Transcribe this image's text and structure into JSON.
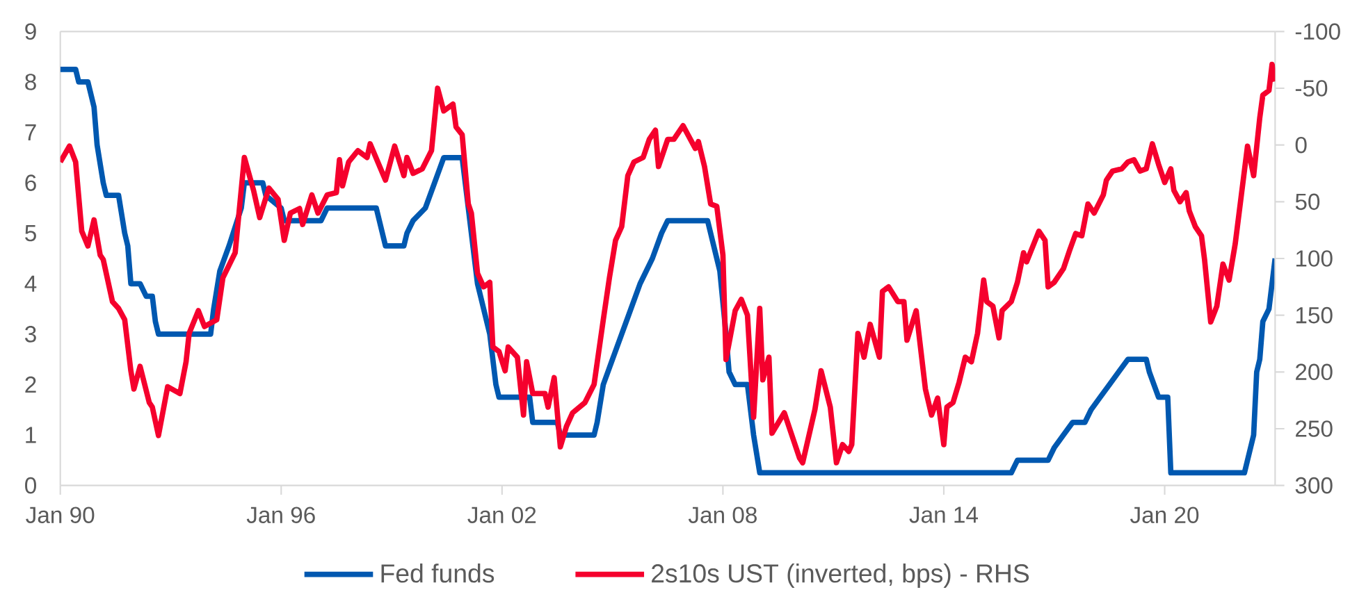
{
  "chart_data": {
    "type": "line",
    "xlim": [
      "1990-01",
      "2023-01"
    ],
    "xticks": [
      {
        "value": "1990-01",
        "label": "Jan 90"
      },
      {
        "value": "1996-01",
        "label": "Jan 96"
      },
      {
        "value": "2002-01",
        "label": "Jan 02"
      },
      {
        "value": "2008-01",
        "label": "Jan 08"
      },
      {
        "value": "2014-01",
        "label": "Jan 14"
      },
      {
        "value": "2020-01",
        "label": "Jan 20"
      }
    ],
    "ylim": [
      0,
      9
    ],
    "yticks": [
      0,
      1,
      2,
      3,
      4,
      5,
      6,
      7,
      8,
      9
    ],
    "y2lim": [
      300,
      -100
    ],
    "y2ticks": [
      -100,
      -50,
      0,
      50,
      100,
      150,
      200,
      250,
      300
    ],
    "legend": "bottom",
    "grid": false,
    "marker": "none",
    "line_style": "solid",
    "series": [
      {
        "name": "Fed funds",
        "color": "#0058b0",
        "axis": "y",
        "x": [
          "1990-01",
          "1990-06",
          "1990-07",
          "1990-10",
          "1990-12",
          "1991-01",
          "1991-03",
          "1991-04",
          "1991-08",
          "1991-10",
          "1991-11",
          "1991-12",
          "1992-03",
          "1992-05",
          "1992-07",
          "1992-08",
          "1992-09",
          "1994-02",
          "1994-03",
          "1994-05",
          "1994-08",
          "1994-12",
          "1995-01",
          "1995-07",
          "1995-08",
          "1996-01",
          "1996-02",
          "1997-02",
          "1997-04",
          "1998-08",
          "1998-11",
          "1999-05",
          "1999-06",
          "1999-08",
          "1999-12",
          "2000-03",
          "2000-06",
          "2000-12",
          "2001-02",
          "2001-05",
          "2001-06",
          "2001-09",
          "2001-11",
          "2001-12",
          "2002-10",
          "2002-11",
          "2003-07",
          "2003-08",
          "2004-07",
          "2004-08",
          "2004-10",
          "2005-01",
          "2005-04",
          "2005-07",
          "2005-10",
          "2006-02",
          "2006-05",
          "2006-07",
          "2007-08",
          "2007-10",
          "2007-12",
          "2008-02",
          "2008-03",
          "2008-05",
          "2008-09",
          "2008-11",
          "2009-01",
          "2015-11",
          "2016-01",
          "2016-11",
          "2017-01",
          "2017-04",
          "2017-07",
          "2017-11",
          "2018-01",
          "2018-04",
          "2018-07",
          "2018-10",
          "2019-01",
          "2019-07",
          "2019-08",
          "2019-11",
          "2020-02",
          "2020-03",
          "2022-03",
          "2022-04",
          "2022-06",
          "2022-07",
          "2022-08",
          "2022-09",
          "2022-11",
          "2023-01"
        ],
        "values": [
          8.25,
          8.25,
          8.0,
          8.0,
          7.5,
          6.75,
          6.0,
          5.75,
          5.75,
          5.0,
          4.75,
          4.0,
          4.0,
          3.75,
          3.75,
          3.25,
          3.0,
          3.0,
          3.5,
          4.25,
          4.75,
          5.5,
          6.0,
          6.0,
          5.75,
          5.5,
          5.25,
          5.25,
          5.5,
          5.5,
          4.75,
          4.75,
          5.0,
          5.25,
          5.5,
          6.0,
          6.5,
          6.5,
          5.5,
          4.0,
          3.75,
          3.0,
          2.0,
          1.75,
          1.75,
          1.25,
          1.25,
          1.0,
          1.0,
          1.25,
          2.0,
          2.5,
          3.0,
          3.5,
          4.0,
          4.5,
          5.0,
          5.25,
          5.25,
          4.75,
          4.25,
          3.0,
          2.25,
          2.0,
          2.0,
          1.0,
          0.25,
          0.25,
          0.5,
          0.5,
          0.75,
          1.0,
          1.25,
          1.25,
          1.5,
          1.75,
          2.0,
          2.25,
          2.5,
          2.5,
          2.25,
          1.75,
          1.75,
          0.25,
          0.25,
          0.5,
          1.0,
          2.25,
          2.5,
          3.25,
          3.5,
          4.5
        ]
      },
      {
        "name": "2s10s UST (inverted, bps) - RHS",
        "color": "#f5002d",
        "axis": "y2",
        "x": [
          "1990-01",
          "1990-04",
          "1990-06",
          "1990-08",
          "1990-10",
          "1990-12",
          "1991-02",
          "1991-03",
          "1991-06",
          "1991-08",
          "1991-10",
          "1991-12",
          "1992-01",
          "1992-03",
          "1992-06",
          "1992-07",
          "1992-09",
          "1992-12",
          "1993-04",
          "1993-06",
          "1993-07",
          "1993-10",
          "1993-12",
          "1994-04",
          "1994-06",
          "1994-10",
          "1995-01",
          "1995-04",
          "1995-06",
          "1995-09",
          "1995-12",
          "1996-02",
          "1996-04",
          "1996-07",
          "1996-08",
          "1996-11",
          "1997-01",
          "1997-04",
          "1997-07",
          "1997-08",
          "1997-09",
          "1997-11",
          "1998-02",
          "1998-05",
          "1998-06",
          "1998-11",
          "1999-02",
          "1999-05",
          "1999-06",
          "1999-08",
          "1999-11",
          "2000-02",
          "2000-04",
          "2000-06",
          "2000-09",
          "2000-10",
          "2000-12",
          "2001-02",
          "2001-03",
          "2001-05",
          "2001-07",
          "2001-09",
          "2001-10",
          "2001-12",
          "2002-02",
          "2002-03",
          "2002-06",
          "2002-08",
          "2002-09",
          "2002-11",
          "2003-03",
          "2003-04",
          "2003-06",
          "2003-08",
          "2003-10",
          "2003-12",
          "2004-04",
          "2004-07",
          "2004-10",
          "2004-12",
          "2005-02",
          "2005-04",
          "2005-06",
          "2005-08",
          "2005-11",
          "2006-01",
          "2006-03",
          "2006-04",
          "2006-07",
          "2006-09",
          "2006-12",
          "2007-04",
          "2007-05",
          "2007-07",
          "2007-09",
          "2007-11",
          "2008-01",
          "2008-02",
          "2008-05",
          "2008-07",
          "2008-09",
          "2008-11",
          "2009-01",
          "2009-02",
          "2009-04",
          "2009-05",
          "2009-09",
          "2009-11",
          "2010-02",
          "2010-03",
          "2010-07",
          "2010-09",
          "2010-12",
          "2011-02",
          "2011-04",
          "2011-06",
          "2011-07",
          "2011-09",
          "2011-11",
          "2012-01",
          "2012-04",
          "2012-05",
          "2012-07",
          "2012-10",
          "2012-12",
          "2013-01",
          "2013-04",
          "2013-07",
          "2013-09",
          "2013-11",
          "2014-01",
          "2014-02",
          "2014-04",
          "2014-06",
          "2014-08",
          "2014-10",
          "2014-12",
          "2015-02",
          "2015-03",
          "2015-05",
          "2015-07",
          "2015-08",
          "2015-11",
          "2016-01",
          "2016-03",
          "2016-04",
          "2016-08",
          "2016-10",
          "2016-11",
          "2017-01",
          "2017-04",
          "2017-06",
          "2017-08",
          "2017-10",
          "2017-12",
          "2018-02",
          "2018-05",
          "2018-06",
          "2018-08",
          "2018-11",
          "2019-01",
          "2019-03",
          "2019-05",
          "2019-07",
          "2019-09",
          "2019-11",
          "2020-01",
          "2020-03",
          "2020-04",
          "2020-06",
          "2020-08",
          "2020-09",
          "2020-11",
          "2021-01",
          "2021-02",
          "2021-04",
          "2021-06",
          "2021-08",
          "2021-10",
          "2021-12",
          "2022-02",
          "2022-04",
          "2022-06",
          "2022-08",
          "2022-09",
          "2022-11",
          "2022-12",
          "2023-01"
        ],
        "values": [
          15,
          1,
          15,
          76,
          89,
          66,
          97,
          101,
          138,
          144,
          154,
          199,
          215,
          195,
          227,
          231,
          256,
          213,
          219,
          191,
          166,
          146,
          160,
          154,
          117,
          95,
          11,
          40,
          64,
          38,
          48,
          84,
          60,
          56,
          70,
          44,
          60,
          44,
          42,
          13,
          36,
          15,
          5,
          11,
          -1,
          31,
          1,
          27,
          11,
          25,
          21,
          5,
          -50,
          -30,
          -36,
          -16,
          -9,
          52,
          60,
          113,
          125,
          121,
          178,
          182,
          199,
          178,
          187,
          238,
          191,
          219,
          219,
          231,
          205,
          266,
          248,
          236,
          227,
          211,
          154,
          117,
          84,
          72,
          27,
          15,
          11,
          -5,
          -13,
          19,
          -5,
          -5,
          -17,
          3,
          -3,
          19,
          52,
          54,
          97,
          189,
          146,
          136,
          150,
          240,
          144,
          207,
          187,
          254,
          236,
          252,
          276,
          280,
          233,
          199,
          231,
          280,
          264,
          270,
          264,
          166,
          187,
          158,
          187,
          129,
          125,
          138,
          138,
          172,
          146,
          215,
          238,
          223,
          264,
          231,
          227,
          209,
          187,
          191,
          166,
          119,
          138,
          142,
          170,
          146,
          138,
          121,
          95,
          103,
          76,
          84,
          125,
          121,
          109,
          93,
          78,
          80,
          52,
          60,
          44,
          31,
          23,
          21,
          15,
          13,
          23,
          21,
          -1,
          17,
          33,
          21,
          40,
          50,
          42,
          58,
          72,
          80,
          101,
          156,
          142,
          105,
          119,
          87,
          44,
          1,
          27,
          -24,
          -44,
          -48,
          -71,
          -56
        ]
      }
    ]
  }
}
